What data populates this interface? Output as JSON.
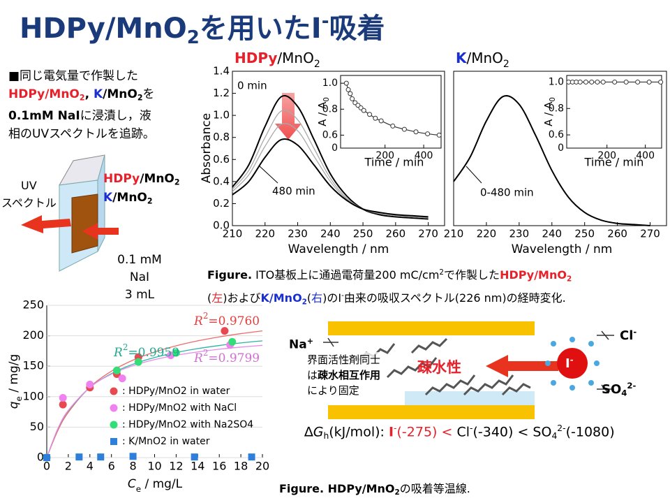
{
  "title": [
    "HDPy/MnO",
    "2",
    "を用いたI",
    "-",
    "吸着"
  ],
  "intro": [
    [
      "■同じ電気量で作製した"
    ],
    [
      "HDPy/MnO",
      "2",
      ", ",
      "K",
      "/MnO",
      "2",
      "を"
    ],
    [
      "0.1mM NaI",
      "に浸漬し，液"
    ],
    [
      "相のUVスペクトルを追跡。"
    ]
  ],
  "cuvette": {
    "light": [
      "UV",
      "スペクトル"
    ],
    "films": [
      [
        "HDPy",
        "/MnO",
        "2"
      ],
      [
        "K",
        "/MnO",
        "2"
      ]
    ],
    "solution": [
      "0.1 mM",
      "NaI",
      "3 mL"
    ]
  },
  "caption1": [
    [
      "Figure.",
      " ITO基板上に通過電荷量200 mC/cm",
      "2",
      "で作製した",
      "HDPy/MnO",
      "2"
    ],
    [
      "(",
      "左",
      ")および",
      "K/MnO",
      "2",
      "(",
      "右",
      ")のI",
      "-",
      "由来の吸収スペクトル(226 nm)の経時変化."
    ]
  ],
  "caption2": [
    "Figure.",
    " HDPy/MnO",
    "2",
    "の吸着等温線."
  ],
  "diagram": {
    "na": [
      "Na",
      "+"
    ],
    "cl": [
      "Cl",
      "-"
    ],
    "so4": [
      "SO",
      "4",
      "2-"
    ],
    "note": [
      "界面活性剤同士",
      "は",
      "疎水相互作用",
      "により固定"
    ],
    "hydrophobic": "疎水性",
    "iodide": [
      "I",
      "-"
    ],
    "dg": [
      "∆G",
      "h",
      "(kJ/mol):  ",
      "I",
      "-",
      "(-275) <",
      " Cl",
      "-",
      "(-340) < SO",
      "4",
      "2-",
      "(-1080)"
    ]
  },
  "chart_data": [
    {
      "type": "line",
      "title_parts": [
        "HDPy",
        "/MnO",
        "2"
      ],
      "x_label": "Wavelength / nm",
      "y_label": "Absorbance",
      "x": [
        210,
        215,
        220,
        225,
        230,
        235,
        240,
        245,
        250,
        255,
        260,
        265,
        270
      ],
      "xlim": [
        210,
        275
      ],
      "xticks": [
        210,
        220,
        230,
        240,
        250,
        260,
        270
      ],
      "ylim": [
        0,
        1.4
      ],
      "yticks": [
        {
          "value": 0,
          "label": "0.0"
        },
        0.2,
        0.4,
        0.6,
        0.8,
        {
          "value": 1,
          "label": "1.0"
        },
        1.2,
        1.4
      ],
      "series": [
        {
          "name": "0 min",
          "color": "#000000",
          "values": [
            0.35,
            0.55,
            0.9,
            1.17,
            1.08,
            0.78,
            0.47,
            0.27,
            0.15,
            0.1,
            0.08,
            0.07,
            0.06
          ]
        },
        {
          "color": "#aaaaaa",
          "values": [
            0.33,
            0.5,
            0.8,
            1.04,
            0.96,
            0.7,
            0.43,
            0.25,
            0.15,
            0.11,
            0.09,
            0.08,
            0.07
          ]
        },
        {
          "color": "#aaaaaa",
          "values": [
            0.31,
            0.46,
            0.72,
            0.92,
            0.86,
            0.63,
            0.4,
            0.24,
            0.15,
            0.11,
            0.09,
            0.08,
            0.07
          ]
        },
        {
          "name": "480 min",
          "color": "#000000",
          "values": [
            0.28,
            0.4,
            0.62,
            0.78,
            0.73,
            0.55,
            0.36,
            0.23,
            0.15,
            0.12,
            0.1,
            0.09,
            0.08
          ]
        }
      ]
    },
    {
      "type": "line",
      "x_label": "Time / min",
      "y_label_parts": [
        "A / A",
        "0"
      ],
      "origin_label": "0",
      "x": [
        0,
        10,
        20,
        30,
        45,
        60,
        75,
        90,
        120,
        150,
        180,
        240,
        300,
        360,
        420,
        480
      ],
      "xlim": [
        -30,
        490
      ],
      "xticks": [
        200,
        400
      ],
      "ylim": [
        0.5,
        1.06
      ],
      "yticks": [
        0.6,
        0.8,
        {
          "value": 1,
          "label": "1.0"
        }
      ],
      "series": [
        {
          "color": "#333333",
          "marker": "open-circle",
          "values": [
            1.0,
            0.95,
            0.92,
            0.88,
            0.85,
            0.83,
            0.81,
            0.79,
            0.76,
            0.73,
            0.71,
            0.67,
            0.645,
            0.625,
            0.61,
            0.6
          ]
        }
      ]
    },
    {
      "type": "line",
      "title_parts": [
        "K",
        "/MnO",
        "2"
      ],
      "x_label": "Wavelength / nm",
      "x": [
        210,
        215,
        220,
        225,
        230,
        235,
        240,
        245,
        250,
        255,
        260,
        265,
        270
      ],
      "xlim": [
        210,
        275
      ],
      "xticks": [
        210,
        220,
        230,
        240,
        250,
        260,
        270
      ],
      "ylim": [
        0,
        1.4
      ],
      "series": [
        {
          "name": "0-480 min",
          "color": "#000000",
          "values": [
            0.4,
            0.62,
            0.95,
            1.17,
            1.1,
            0.82,
            0.5,
            0.26,
            0.12,
            0.05,
            0.02,
            0.01,
            0.0
          ]
        }
      ]
    },
    {
      "type": "line",
      "x_label": "Time / min",
      "y_label_parts": [
        "A / A",
        "0"
      ],
      "origin_label": "0",
      "x": [
        0,
        20,
        40,
        60,
        90,
        120,
        150,
        180,
        240,
        300,
        360,
        420,
        480
      ],
      "xlim": [
        -10,
        485
      ],
      "xticks": [
        200,
        400
      ],
      "ylim": [
        0.5,
        1.05
      ],
      "yticks": [
        0.6,
        0.8,
        {
          "value": 1,
          "label": "1.0"
        }
      ],
      "series": [
        {
          "color": "#333333",
          "marker": "open-circle",
          "values": [
            1,
            1,
            1,
            1,
            1,
            1,
            1,
            1,
            1,
            1,
            1,
            1,
            1
          ]
        }
      ]
    },
    {
      "type": "scatter",
      "x_label_parts": [
        "C",
        "e",
        " / mg/L"
      ],
      "y_label_parts": [
        "q",
        "e",
        " / mg/g"
      ],
      "xlim": [
        0,
        20
      ],
      "xticks": [
        0,
        2,
        4,
        6,
        8,
        10,
        12,
        14,
        16,
        18,
        20
      ],
      "ylim": [
        0,
        250
      ],
      "yticks": [
        0,
        50,
        100,
        150,
        200,
        250
      ],
      "series": [
        {
          "color": "#ef6a6a",
          "x": [
            0,
            1,
            2,
            4,
            6,
            8,
            10,
            12,
            14,
            16,
            18,
            20
          ],
          "values": [
            0,
            43.3,
            74.3,
            115.6,
            141.8,
            160,
            173.3,
            183.5,
            191.6,
            198.1,
            203.5,
            208
          ]
        },
        {
          "color": "#2ab5a0",
          "x": [
            0,
            1,
            2,
            4,
            6,
            8,
            10,
            12,
            14,
            16,
            18,
            20
          ],
          "values": [
            0,
            46,
            76.7,
            115,
            138,
            153.3,
            164.3,
            172.5,
            178.9,
            184,
            188.2,
            191.7
          ]
        },
        {
          "color": "#e88ae8",
          "x": [
            0,
            1,
            2,
            4,
            6,
            8,
            10,
            12,
            14,
            16,
            18,
            20
          ],
          "values": [
            0,
            46.4,
            77.6,
            115.2,
            137,
            151,
            160.8,
            168,
            173.5,
            177.9,
            181.4,
            184.3
          ]
        },
        {
          "name": ": HDPy/MnO2 in water",
          "color": "#e84850",
          "marker": "circle",
          "x": [
            0,
            1.5,
            4,
            6.5,
            8.5,
            16.5
          ],
          "values": [
            0,
            87,
            115,
            137,
            165,
            208
          ]
        },
        {
          "name": ": HDPy/MnO2 with NaCl",
          "color": "#ee82ee",
          "marker": "circle",
          "x": [
            0,
            1.5,
            4,
            7,
            11.5,
            17
          ],
          "values": [
            0,
            98,
            120,
            130,
            168,
            185
          ]
        },
        {
          "name": ": HDPy/MnO2 with Na2SO4",
          "color": "#33dd77",
          "marker": "circle",
          "x": [
            0,
            6.5,
            8.5,
            12,
            17.2
          ],
          "values": [
            0,
            143,
            157,
            172,
            190
          ]
        },
        {
          "name": ": K/MnO2 in water",
          "color": "#2e7fdc",
          "marker": "square",
          "x": [
            0,
            3,
            5,
            8,
            13.7,
            19
          ],
          "values": [
            0,
            1,
            1,
            2,
            1,
            1
          ]
        }
      ],
      "annotations": [
        {
          "parts": [
            "R",
            "2",
            "=0.9760"
          ],
          "color": "#e04040"
        },
        {
          "parts": [
            "R",
            "2",
            "=0.9959"
          ],
          "color": "#20a890"
        },
        {
          "parts": [
            "R",
            "2",
            "=0.9799"
          ],
          "color": "#d070d0"
        }
      ]
    }
  ]
}
